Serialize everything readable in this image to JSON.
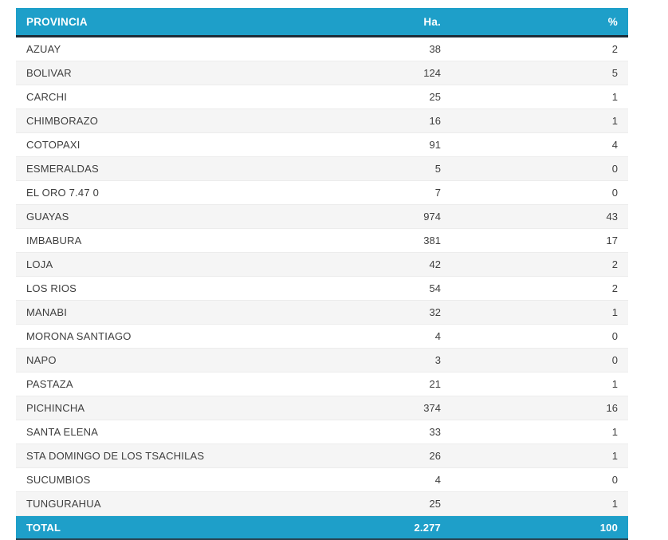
{
  "colors": {
    "header_bg": "#1e9fc9",
    "header_text": "#ffffff",
    "dark_rule": "#1d2c38",
    "row_stripe": "#f5f5f5",
    "body_text": "#3e3e3e"
  },
  "table": {
    "columns": [
      {
        "key": "provincia",
        "label": "PROVINCIA",
        "align": "left"
      },
      {
        "key": "ha",
        "label": "Ha.",
        "align": "right"
      },
      {
        "key": "pct",
        "label": "%",
        "align": "right"
      }
    ],
    "rows": [
      {
        "provincia": "AZUAY",
        "ha": "38",
        "pct": "2"
      },
      {
        "provincia": "BOLIVAR",
        "ha": "124",
        "pct": "5"
      },
      {
        "provincia": "CARCHI",
        "ha": "25",
        "pct": "1"
      },
      {
        "provincia": "CHIMBORAZO",
        "ha": "16",
        "pct": "1"
      },
      {
        "provincia": "COTOPAXI",
        "ha": "91",
        "pct": "4"
      },
      {
        "provincia": "ESMERALDAS",
        "ha": "5",
        "pct": "0"
      },
      {
        "provincia": "EL ORO 7.47 0",
        "ha": "7",
        "pct": "0"
      },
      {
        "provincia": "GUAYAS",
        "ha": "974",
        "pct": "43"
      },
      {
        "provincia": "IMBABURA",
        "ha": "381",
        "pct": "17"
      },
      {
        "provincia": "LOJA",
        "ha": "42",
        "pct": "2"
      },
      {
        "provincia": "LOS RIOS",
        "ha": "54",
        "pct": "2"
      },
      {
        "provincia": "MANABI",
        "ha": "32",
        "pct": "1"
      },
      {
        "provincia": "MORONA SANTIAGO",
        "ha": "4",
        "pct": "0"
      },
      {
        "provincia": "NAPO",
        "ha": "3",
        "pct": "0"
      },
      {
        "provincia": "PASTAZA",
        "ha": "21",
        "pct": "1"
      },
      {
        "provincia": "PICHINCHA",
        "ha": "374",
        "pct": "16"
      },
      {
        "provincia": "SANTA ELENA",
        "ha": "33",
        "pct": "1"
      },
      {
        "provincia": "STA DOMINGO DE LOS TSACHILAS",
        "ha": "26",
        "pct": "1"
      },
      {
        "provincia": "SUCUMBIOS",
        "ha": "4",
        "pct": "0"
      },
      {
        "provincia": "TUNGURAHUA",
        "ha": "25",
        "pct": "1"
      }
    ],
    "total": {
      "label": "TOTAL",
      "ha": "2.277",
      "pct": "100"
    }
  },
  "chart_data": {
    "type": "table",
    "title": "",
    "columns": [
      "PROVINCIA",
      "Ha.",
      "%"
    ],
    "rows": [
      [
        "AZUAY",
        38,
        2
      ],
      [
        "BOLIVAR",
        124,
        5
      ],
      [
        "CARCHI",
        25,
        1
      ],
      [
        "CHIMBORAZO",
        16,
        1
      ],
      [
        "COTOPAXI",
        91,
        4
      ],
      [
        "ESMERALDAS",
        5,
        0
      ],
      [
        "EL ORO 7.47 0",
        7,
        0
      ],
      [
        "GUAYAS",
        974,
        43
      ],
      [
        "IMBABURA",
        381,
        17
      ],
      [
        "LOJA",
        42,
        2
      ],
      [
        "LOS RIOS",
        54,
        2
      ],
      [
        "MANABI",
        32,
        1
      ],
      [
        "MORONA SANTIAGO",
        4,
        0
      ],
      [
        "NAPO",
        3,
        0
      ],
      [
        "PASTAZA",
        21,
        1
      ],
      [
        "PICHINCHA",
        374,
        16
      ],
      [
        "SANTA ELENA",
        33,
        1
      ],
      [
        "STA DOMINGO DE LOS TSACHILAS",
        26,
        1
      ],
      [
        "SUCUMBIOS",
        4,
        0
      ],
      [
        "TUNGURAHUA",
        25,
        1
      ]
    ],
    "total_row": [
      "TOTAL",
      "2.277",
      100
    ]
  }
}
